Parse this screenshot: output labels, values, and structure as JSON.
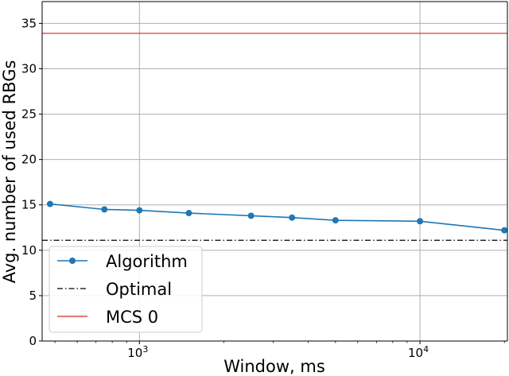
{
  "chart_data": {
    "type": "line",
    "xlabel": "Window, ms",
    "ylabel": "Avg. number of used RBGs",
    "xscale": "log",
    "xlim": [
      450,
      20500
    ],
    "ylim": [
      0,
      37.4
    ],
    "grid": true,
    "legend_position": "bottom-left",
    "x_ticks": [
      {
        "value": 1000,
        "base": "10",
        "exp": "3"
      },
      {
        "value": 10000,
        "base": "10",
        "exp": "4"
      }
    ],
    "y_ticks": [
      0,
      5,
      10,
      15,
      20,
      25,
      30,
      35
    ],
    "series": [
      {
        "name": "Algorithm",
        "style": "line-marker",
        "color": "#1f77b4",
        "x": [
          480,
          750,
          1000,
          1500,
          2500,
          3500,
          5000,
          10000,
          20000
        ],
        "y": [
          15.1,
          14.5,
          14.4,
          14.1,
          13.8,
          13.6,
          13.3,
          13.2,
          12.2
        ]
      },
      {
        "name": "Optimal",
        "style": "dash-dot",
        "color": "#000000",
        "y_constant": 11.1
      },
      {
        "name": "MCS 0",
        "style": "solid",
        "color": "#d62728",
        "y_constant": 33.9
      }
    ]
  }
}
